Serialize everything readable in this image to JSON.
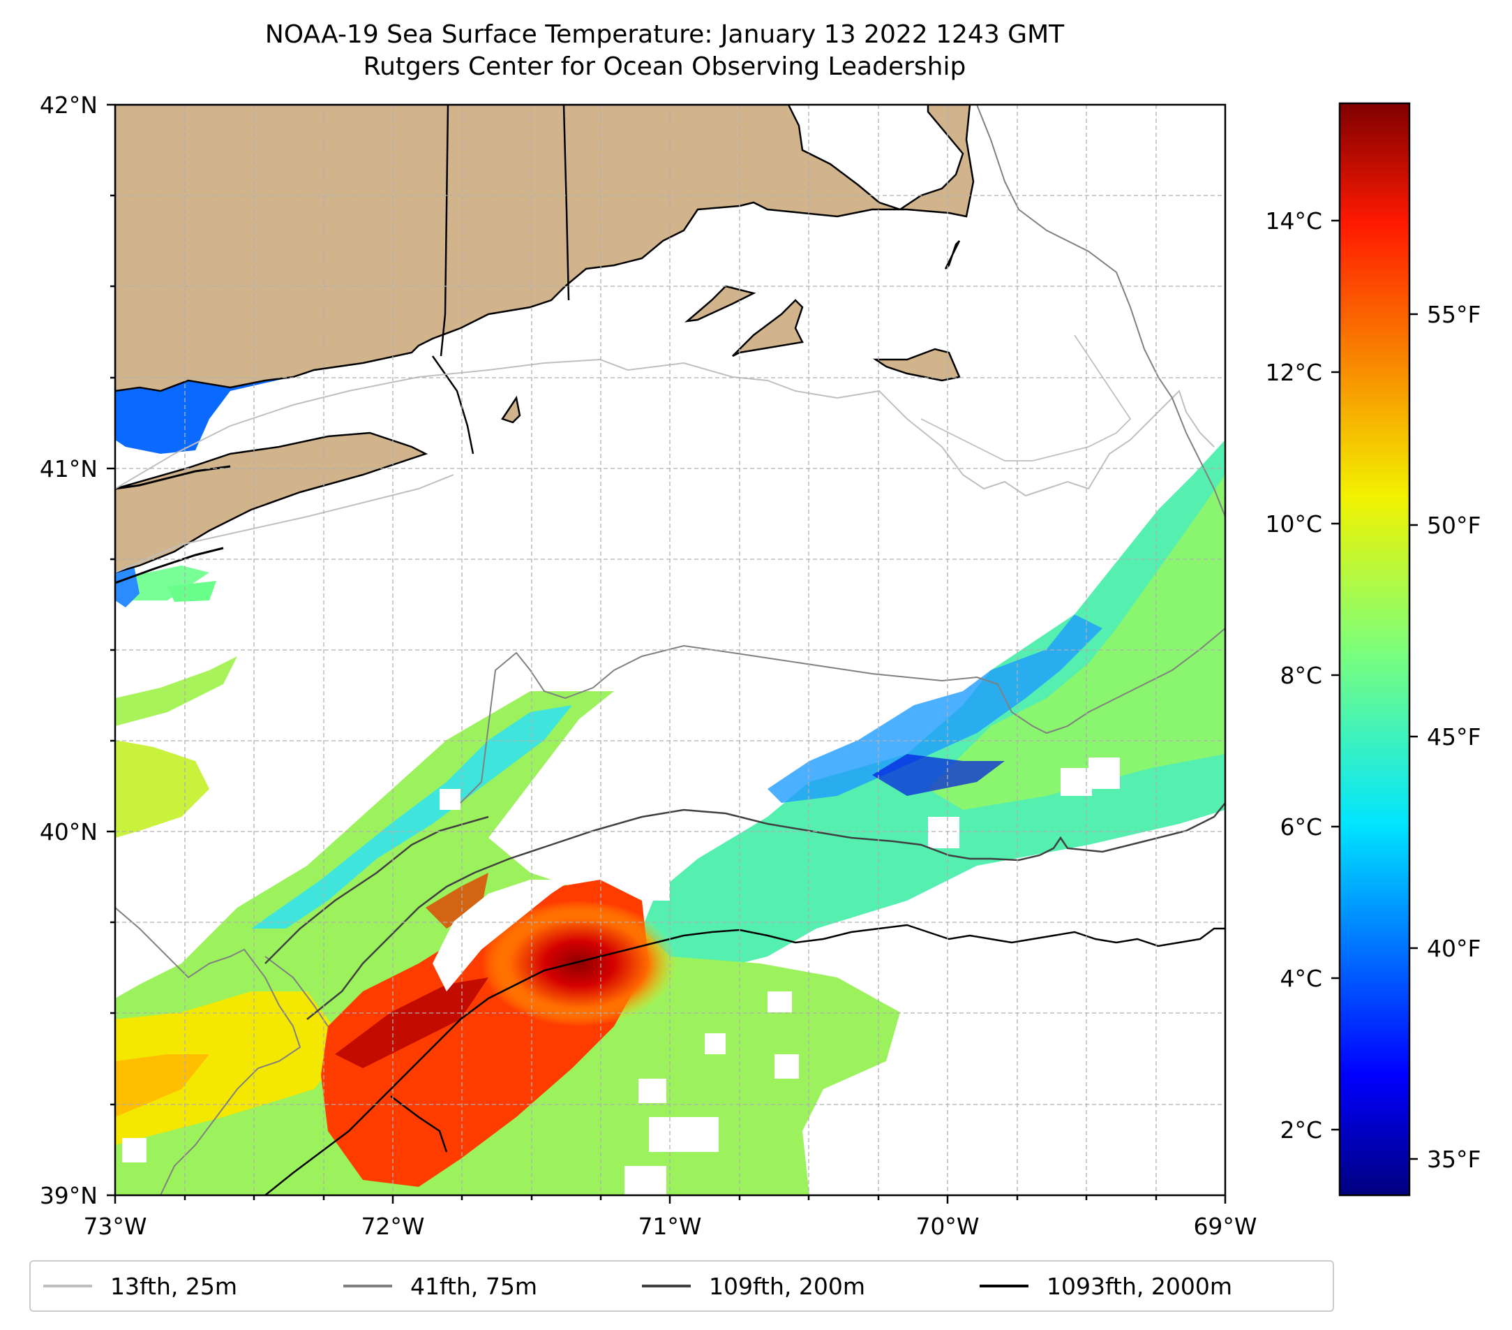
{
  "title": {
    "line1": "NOAA-19 Sea Surface Temperature: January 13 2022 1243 GMT",
    "line2": "Rutgers Center for Ocean Observing Leadership"
  },
  "map": {
    "lon_range": [
      -73,
      -69
    ],
    "lat_range": [
      39,
      42
    ],
    "x_ticks": [
      "73°W",
      "72°W",
      "71°W",
      "70°W",
      "69°W"
    ],
    "y_ticks": [
      "39°N",
      "40°N",
      "41°N",
      "42°N"
    ],
    "land_color": "#d2b48c",
    "grid": true
  },
  "colorbar": {
    "colormap": "jet",
    "celsius_ticks": [
      "2°C",
      "4°C",
      "6°C",
      "8°C",
      "10°C",
      "12°C",
      "14°C"
    ],
    "fahrenheit_ticks": [
      "35°F",
      "40°F",
      "45°F",
      "50°F",
      "55°F"
    ]
  },
  "legend": {
    "items": [
      {
        "label": "13fth, 25m",
        "color": "#bfbfbf"
      },
      {
        "label": "41fth, 75m",
        "color": "#808080"
      },
      {
        "label": "109fth, 200m",
        "color": "#404040"
      },
      {
        "label": "1093fth, 2000m",
        "color": "#000000"
      }
    ]
  }
}
